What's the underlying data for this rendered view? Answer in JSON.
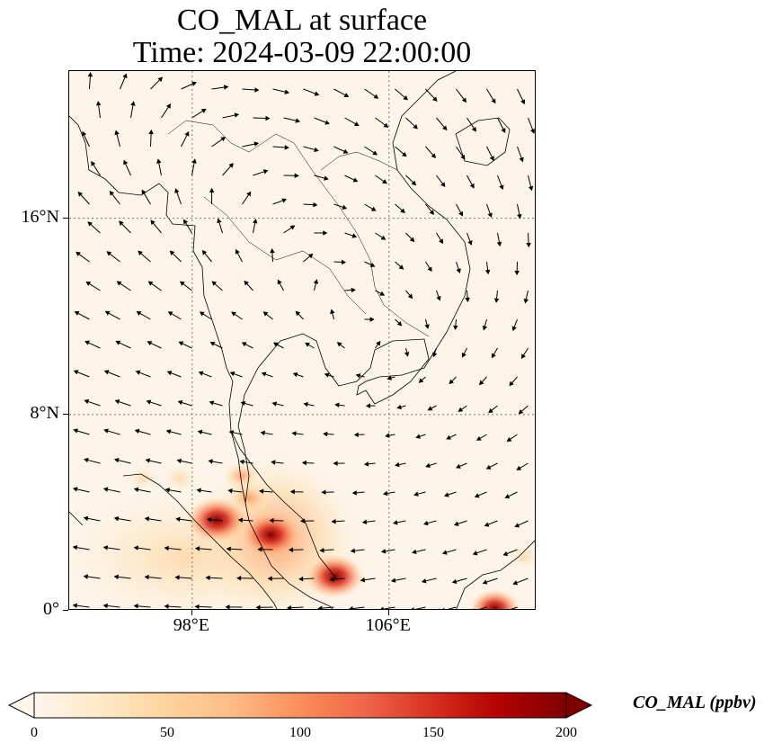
{
  "title": {
    "line1": "CO_MAL at surface",
    "line2": "Time: 2024-03-09 22:00:00"
  },
  "axes": {
    "lat_ticks": [
      {
        "value": 16,
        "label": "16°N"
      },
      {
        "value": 8,
        "label": "8°N"
      },
      {
        "value": 0,
        "label": "0°"
      }
    ],
    "lon_ticks": [
      {
        "value": 98,
        "label": "98°E"
      },
      {
        "value": 106,
        "label": "106°E"
      }
    ],
    "lon_range": [
      93,
      112
    ],
    "lat_range": [
      0,
      22
    ],
    "gridlines": "dotted"
  },
  "colorbar": {
    "label": "CO_MAL (ppbv)",
    "ticks": [
      "0",
      "50",
      "100",
      "150",
      "200"
    ],
    "range": [
      0,
      200
    ],
    "colormap": "OrRd",
    "extend": "both",
    "colors": [
      "#fff7ec",
      "#fee8c8",
      "#fdd49e",
      "#fdbb84",
      "#fc8d59",
      "#ef6548",
      "#d7301f",
      "#b30000",
      "#7f0000"
    ]
  },
  "chart_data": {
    "type": "heatmap",
    "variable": "CO_MAL",
    "units": "ppbv",
    "hotspots": [
      {
        "lon": 99.0,
        "lat": 3.7,
        "value": 200
      },
      {
        "lon": 100.0,
        "lat": 5.5,
        "value": 80
      },
      {
        "lon": 100.3,
        "lat": 4.6,
        "value": 110
      },
      {
        "lon": 101.2,
        "lat": 3.1,
        "value": 190
      },
      {
        "lon": 103.8,
        "lat": 1.4,
        "value": 190
      },
      {
        "lon": 96.0,
        "lat": 5.4,
        "value": 40
      },
      {
        "lon": 97.5,
        "lat": 5.4,
        "value": 60
      },
      {
        "lon": 110.3,
        "lat": 0.1,
        "value": 150
      },
      {
        "lon": 111.5,
        "lat": 2.2,
        "value": 40
      }
    ]
  }
}
